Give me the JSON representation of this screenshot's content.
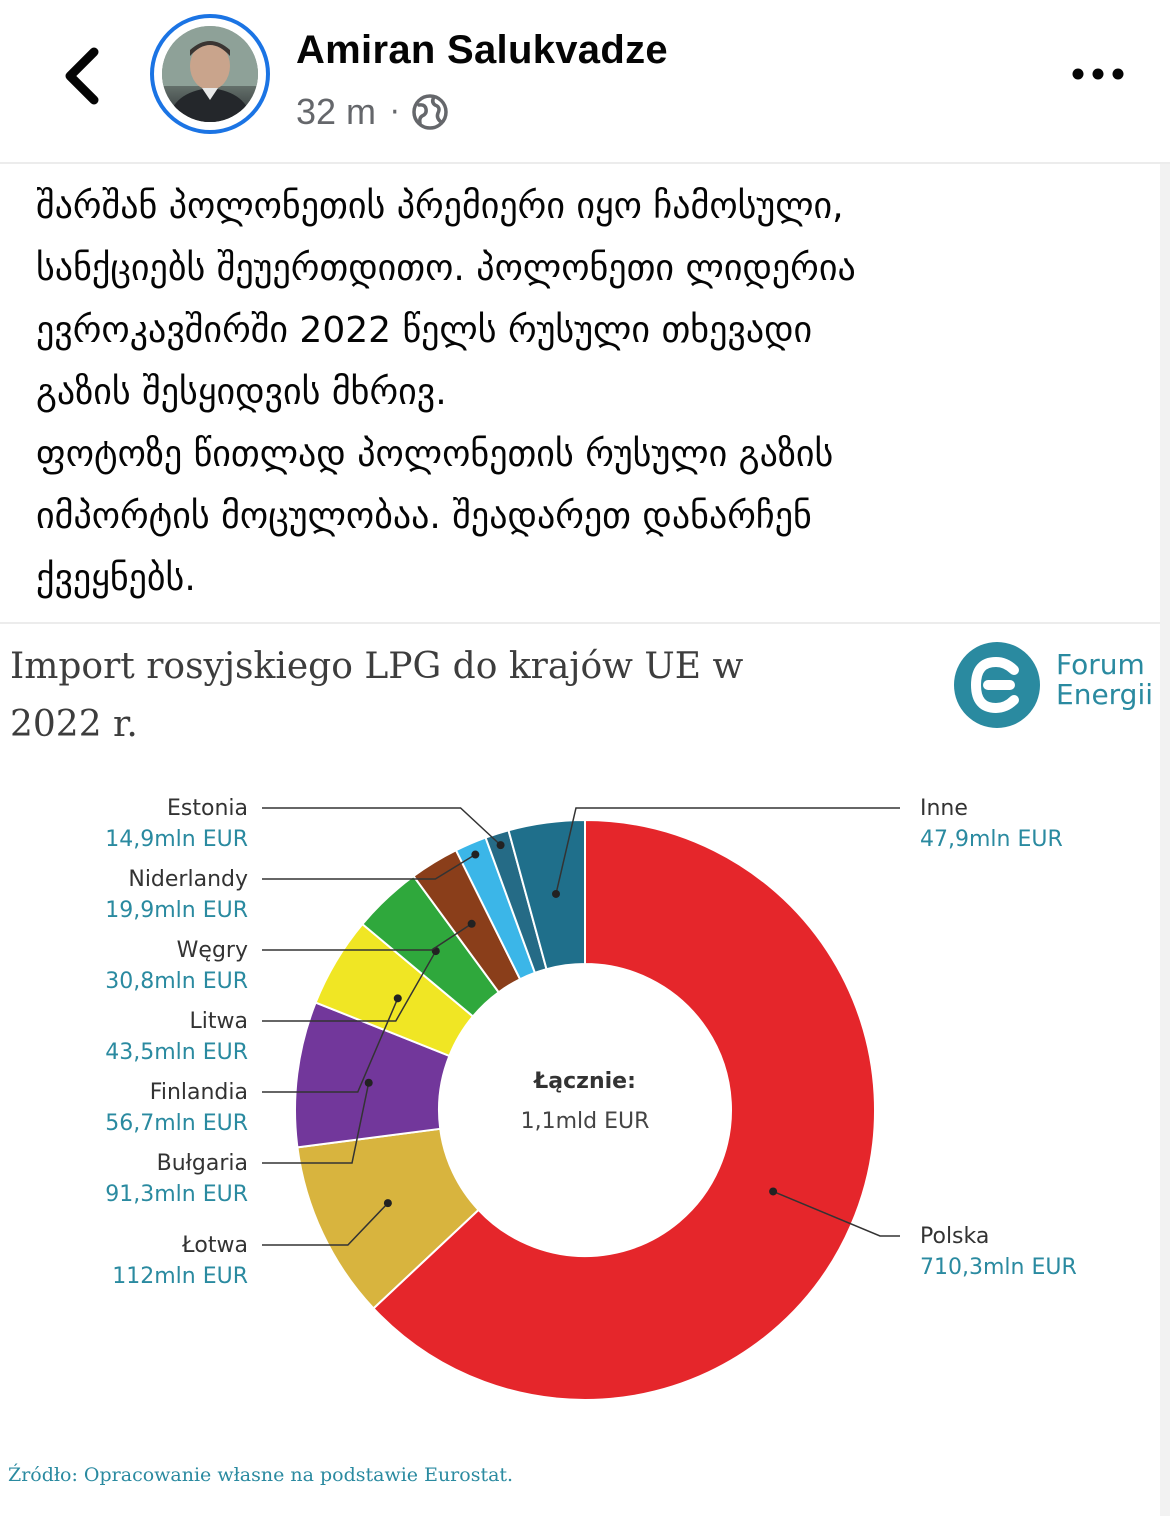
{
  "header": {
    "author_name": "Amiran Salukvadze",
    "time": "32 m",
    "separator": "·",
    "icons": {
      "back": "chevron-left-icon",
      "privacy": "globe-icon",
      "more": "more-horizontal-icon"
    }
  },
  "post": {
    "lines": [
      "შარშან პოლონეთის პრემიერი იყო ჩამოსული,",
      "სანქციებს შეუერთდითო. პოლონეთი ლიდერია",
      "ევროკავშირში 2022 წელს რუსული თხევადი",
      "გაზის შესყიდვის მხრივ.",
      "ფოტოზე წითლად პოლონეთის რუსული გაზის",
      "იმპორტის მოცულობაა. შეადარეთ დანარჩენ",
      "ქვეყნებს."
    ]
  },
  "infographic": {
    "logo": {
      "line1": "Forum",
      "line2": "Energii",
      "color": "#2a8aa0"
    },
    "source": "Źródło: Opracowanie własne na podstawie Eurostat."
  },
  "chart_data": {
    "type": "pie",
    "style": "donut",
    "title_lines": [
      "Import rosyjskiego LPG do krajów UE w",
      "2022 r."
    ],
    "center_label": "Łącznie:",
    "center_value": "1,1mld EUR",
    "unit": "mln EUR",
    "slices": [
      {
        "name": "Polska",
        "value": 710.3,
        "label": "710,3mln EUR",
        "color": "#e5262b"
      },
      {
        "name": "Łotwa",
        "value": 112,
        "label": "112mln EUR",
        "color": "#d8b43e"
      },
      {
        "name": "Bułgaria",
        "value": 91.3,
        "label": "91,3mln EUR",
        "color": "#72379b"
      },
      {
        "name": "Finlandia",
        "value": 56.7,
        "label": "56,7mln EUR",
        "color": "#f0e624"
      },
      {
        "name": "Litwa",
        "value": 43.5,
        "label": "43,5mln EUR",
        "color": "#2fa83c"
      },
      {
        "name": "Węgry",
        "value": 30.8,
        "label": "30,8mln EUR",
        "color": "#8a3e1a"
      },
      {
        "name": "Niderlandy",
        "value": 19.9,
        "label": "19,9mln EUR",
        "color": "#3bb6e8"
      },
      {
        "name": "Estonia",
        "value": 14.9,
        "label": "14,9mln EUR",
        "color": "#256b86"
      },
      {
        "name": "Inne",
        "value": 47.9,
        "label": "47,9mln EUR",
        "color": "#1f6f8b"
      }
    ],
    "label_color": "#2a8aa0",
    "name_color": "#333333",
    "legend": "callouts"
  }
}
